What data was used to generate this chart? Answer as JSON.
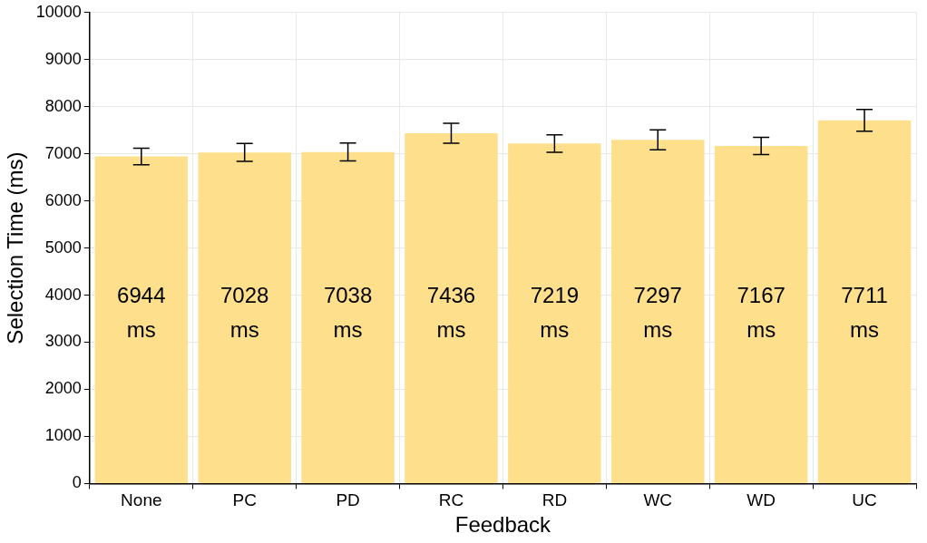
{
  "chart_data": {
    "type": "bar",
    "xlabel": "Feedback",
    "ylabel": "Selection Time (ms)",
    "categories": [
      "None",
      "PC",
      "PD",
      "RC",
      "RD",
      "WC",
      "WD",
      "UC"
    ],
    "values": [
      6944,
      7028,
      7038,
      7436,
      7219,
      7297,
      7167,
      7711
    ],
    "value_labels": [
      "6944 ms",
      "7028 ms",
      "7038 ms",
      "7436 ms",
      "7219 ms",
      "7297 ms",
      "7167 ms",
      "7711 ms"
    ],
    "errors": [
      175,
      190,
      190,
      210,
      185,
      210,
      185,
      230
    ],
    "color": "#fddf8c",
    "ylim": [
      0,
      10000
    ],
    "yticks": [
      0,
      1000,
      2000,
      3000,
      4000,
      5000,
      6000,
      7000,
      8000,
      9000,
      10000
    ],
    "grid": true,
    "legend": false
  }
}
